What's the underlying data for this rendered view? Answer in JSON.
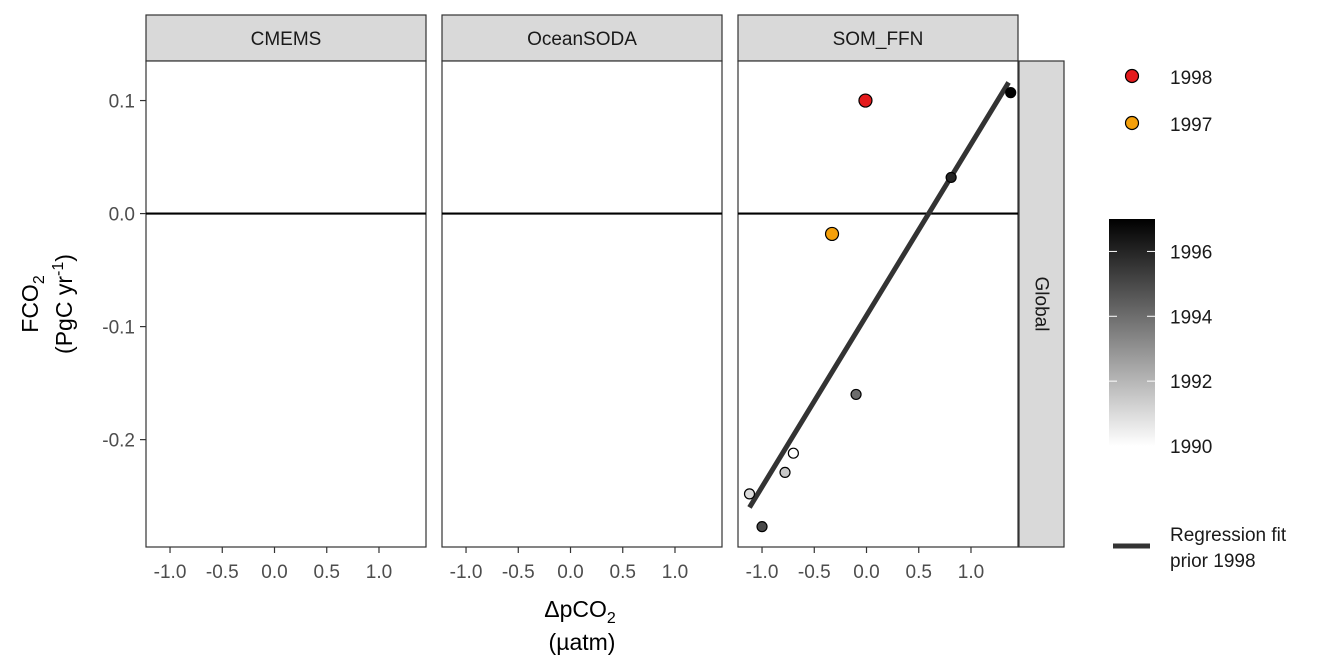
{
  "chart_data": {
    "type": "scatter",
    "panels": [
      {
        "name": "CMEMS",
        "points": []
      },
      {
        "name": "OceanSODA",
        "points": []
      },
      {
        "name": "SOM_FFN",
        "points": [
          {
            "x": -1.12,
            "y": -0.248,
            "year": 1991
          },
          {
            "x": -1.0,
            "y": -0.277,
            "year": 1995
          },
          {
            "x": -0.78,
            "y": -0.229,
            "year": 1991.5
          },
          {
            "x": -0.7,
            "y": -0.212,
            "year": 1990
          },
          {
            "x": -0.33,
            "y": -0.018,
            "year": 1997
          },
          {
            "x": -0.1,
            "y": -0.16,
            "year": 1994
          },
          {
            "x": -0.01,
            "y": 0.1,
            "year": 1998
          },
          {
            "x": 0.81,
            "y": 0.032,
            "year": 1996
          },
          {
            "x": 1.38,
            "y": 0.107,
            "year": 1997
          }
        ],
        "fit": {
          "x": [
            -1.12,
            1.36
          ],
          "y": [
            -0.26,
            0.116
          ]
        }
      }
    ],
    "strip_label_right": "Global",
    "x_ticks": [
      "-1.0",
      "-0.5",
      "0.0",
      "0.5",
      "1.0"
    ],
    "x_tick_values": [
      -1.0,
      -0.5,
      0.0,
      0.5,
      1.0
    ],
    "y_ticks": [
      "0.1",
      "0.0",
      "-0.1",
      "-0.2"
    ],
    "y_tick_values": [
      0.1,
      0.0,
      -0.1,
      -0.2
    ],
    "xlim": [
      -1.23,
      1.45
    ],
    "ylim": [
      -0.295,
      0.135
    ],
    "xlabel_main": "ΔpCO",
    "xlabel_sub": "2",
    "xlabel_unit": "(µatm)",
    "ylabel_main": "FCO",
    "ylabel_sub": "2",
    "ylabel_unit_a": "(PgC yr",
    "ylabel_unit_sup": "-1",
    "ylabel_unit_b": ")",
    "zero_line": 0,
    "legend": {
      "points": [
        {
          "label": "1998",
          "color": "#e41a1c"
        },
        {
          "label": "1997",
          "color": "#f5a00a"
        }
      ],
      "colorbar": {
        "labels": [
          "1996",
          "1994",
          "1992",
          "1990"
        ],
        "values": [
          1996,
          1994,
          1992,
          1990
        ],
        "range": [
          1990,
          1997
        ],
        "low_color": "#ffffff",
        "high_color": "#000000"
      },
      "line": {
        "label_line1": "Regression fit",
        "label_line2": "prior 1998",
        "color": "#333333"
      }
    }
  }
}
